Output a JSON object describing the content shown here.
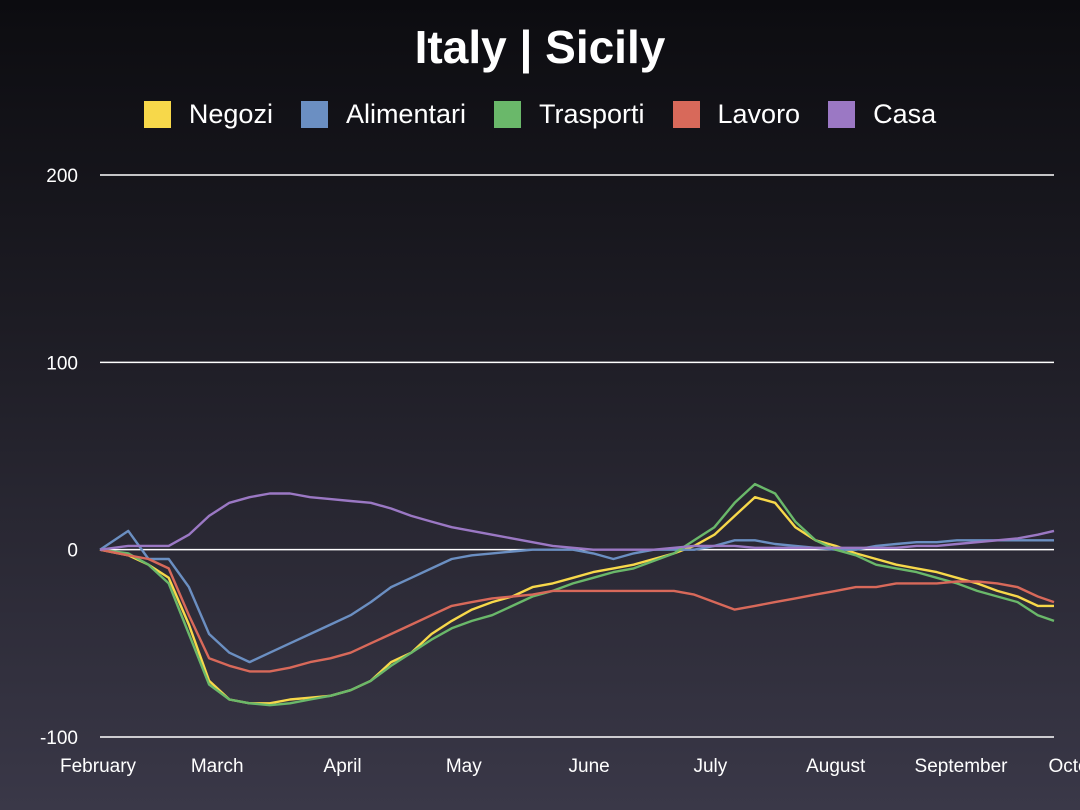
{
  "chart_data": {
    "type": "line",
    "title": "Italy | Sicily",
    "xlabel": "",
    "ylabel": "",
    "ylim": [
      -100,
      200
    ],
    "yticks": [
      -100,
      0,
      100,
      200
    ],
    "grid": "horizontal",
    "legend_position": "top-center",
    "x_tick_labels": [
      "February",
      "March",
      "April",
      "May",
      "June",
      "July",
      "August",
      "September",
      "October"
    ],
    "series": [
      {
        "name": "Negozi",
        "color": "#f7d84a",
        "points": [
          [
            0,
            0
          ],
          [
            7,
            -3
          ],
          [
            12,
            -8
          ],
          [
            17,
            -15
          ],
          [
            22,
            -40
          ],
          [
            27,
            -70
          ],
          [
            32,
            -80
          ],
          [
            37,
            -82
          ],
          [
            42,
            -82
          ],
          [
            47,
            -80
          ],
          [
            52,
            -79
          ],
          [
            57,
            -78
          ],
          [
            62,
            -75
          ],
          [
            67,
            -70
          ],
          [
            72,
            -60
          ],
          [
            77,
            -55
          ],
          [
            82,
            -45
          ],
          [
            87,
            -38
          ],
          [
            92,
            -32
          ],
          [
            97,
            -28
          ],
          [
            102,
            -25
          ],
          [
            107,
            -20
          ],
          [
            112,
            -18
          ],
          [
            117,
            -15
          ],
          [
            122,
            -12
          ],
          [
            127,
            -10
          ],
          [
            132,
            -8
          ],
          [
            137,
            -5
          ],
          [
            142,
            -2
          ],
          [
            147,
            2
          ],
          [
            152,
            8
          ],
          [
            157,
            18
          ],
          [
            162,
            28
          ],
          [
            167,
            25
          ],
          [
            172,
            12
          ],
          [
            177,
            5
          ],
          [
            182,
            2
          ],
          [
            187,
            -2
          ],
          [
            192,
            -5
          ],
          [
            197,
            -8
          ],
          [
            202,
            -10
          ],
          [
            207,
            -12
          ],
          [
            212,
            -15
          ],
          [
            217,
            -18
          ],
          [
            222,
            -22
          ],
          [
            227,
            -25
          ],
          [
            232,
            -30
          ],
          [
            236,
            -30
          ]
        ]
      },
      {
        "name": "Alimentari",
        "color": "#6b8fc2",
        "points": [
          [
            0,
            0
          ],
          [
            7,
            10
          ],
          [
            12,
            -5
          ],
          [
            17,
            -5
          ],
          [
            22,
            -20
          ],
          [
            27,
            -45
          ],
          [
            32,
            -55
          ],
          [
            37,
            -60
          ],
          [
            42,
            -55
          ],
          [
            47,
            -50
          ],
          [
            52,
            -45
          ],
          [
            57,
            -40
          ],
          [
            62,
            -35
          ],
          [
            67,
            -28
          ],
          [
            72,
            -20
          ],
          [
            77,
            -15
          ],
          [
            82,
            -10
          ],
          [
            87,
            -5
          ],
          [
            92,
            -3
          ],
          [
            97,
            -2
          ],
          [
            102,
            -1
          ],
          [
            107,
            0
          ],
          [
            112,
            0
          ],
          [
            117,
            0
          ],
          [
            122,
            -2
          ],
          [
            127,
            -5
          ],
          [
            132,
            -2
          ],
          [
            137,
            0
          ],
          [
            142,
            0
          ],
          [
            147,
            0
          ],
          [
            152,
            2
          ],
          [
            157,
            5
          ],
          [
            162,
            5
          ],
          [
            167,
            3
          ],
          [
            172,
            2
          ],
          [
            177,
            1
          ],
          [
            182,
            0
          ],
          [
            187,
            0
          ],
          [
            192,
            2
          ],
          [
            197,
            3
          ],
          [
            202,
            4
          ],
          [
            207,
            4
          ],
          [
            212,
            5
          ],
          [
            217,
            5
          ],
          [
            222,
            5
          ],
          [
            227,
            5
          ],
          [
            232,
            5
          ],
          [
            236,
            5
          ]
        ]
      },
      {
        "name": "Trasporti",
        "color": "#6ab86a",
        "points": [
          [
            0,
            0
          ],
          [
            7,
            -2
          ],
          [
            12,
            -8
          ],
          [
            17,
            -18
          ],
          [
            22,
            -45
          ],
          [
            27,
            -72
          ],
          [
            32,
            -80
          ],
          [
            37,
            -82
          ],
          [
            42,
            -83
          ],
          [
            47,
            -82
          ],
          [
            52,
            -80
          ],
          [
            57,
            -78
          ],
          [
            62,
            -75
          ],
          [
            67,
            -70
          ],
          [
            72,
            -62
          ],
          [
            77,
            -55
          ],
          [
            82,
            -48
          ],
          [
            87,
            -42
          ],
          [
            92,
            -38
          ],
          [
            97,
            -35
          ],
          [
            102,
            -30
          ],
          [
            107,
            -25
          ],
          [
            112,
            -22
          ],
          [
            117,
            -18
          ],
          [
            122,
            -15
          ],
          [
            127,
            -12
          ],
          [
            132,
            -10
          ],
          [
            137,
            -6
          ],
          [
            142,
            -2
          ],
          [
            147,
            5
          ],
          [
            152,
            12
          ],
          [
            157,
            25
          ],
          [
            162,
            35
          ],
          [
            167,
            30
          ],
          [
            172,
            15
          ],
          [
            177,
            5
          ],
          [
            182,
            0
          ],
          [
            187,
            -3
          ],
          [
            192,
            -8
          ],
          [
            197,
            -10
          ],
          [
            202,
            -12
          ],
          [
            207,
            -15
          ],
          [
            212,
            -18
          ],
          [
            217,
            -22
          ],
          [
            222,
            -25
          ],
          [
            227,
            -28
          ],
          [
            232,
            -35
          ],
          [
            236,
            -38
          ]
        ]
      },
      {
        "name": "Lavoro",
        "color": "#d8695a",
        "points": [
          [
            0,
            0
          ],
          [
            7,
            -3
          ],
          [
            12,
            -5
          ],
          [
            17,
            -10
          ],
          [
            22,
            -35
          ],
          [
            27,
            -58
          ],
          [
            32,
            -62
          ],
          [
            37,
            -65
          ],
          [
            42,
            -65
          ],
          [
            47,
            -63
          ],
          [
            52,
            -60
          ],
          [
            57,
            -58
          ],
          [
            62,
            -55
          ],
          [
            67,
            -50
          ],
          [
            72,
            -45
          ],
          [
            77,
            -40
          ],
          [
            82,
            -35
          ],
          [
            87,
            -30
          ],
          [
            92,
            -28
          ],
          [
            97,
            -26
          ],
          [
            102,
            -25
          ],
          [
            107,
            -24
          ],
          [
            112,
            -22
          ],
          [
            117,
            -22
          ],
          [
            122,
            -22
          ],
          [
            127,
            -22
          ],
          [
            132,
            -22
          ],
          [
            137,
            -22
          ],
          [
            142,
            -22
          ],
          [
            147,
            -24
          ],
          [
            152,
            -28
          ],
          [
            157,
            -32
          ],
          [
            162,
            -30
          ],
          [
            167,
            -28
          ],
          [
            172,
            -26
          ],
          [
            177,
            -24
          ],
          [
            182,
            -22
          ],
          [
            187,
            -20
          ],
          [
            192,
            -20
          ],
          [
            197,
            -18
          ],
          [
            202,
            -18
          ],
          [
            207,
            -18
          ],
          [
            212,
            -17
          ],
          [
            217,
            -17
          ],
          [
            222,
            -18
          ],
          [
            227,
            -20
          ],
          [
            232,
            -25
          ],
          [
            236,
            -28
          ]
        ]
      },
      {
        "name": "Casa",
        "color": "#9b78c4",
        "points": [
          [
            0,
            0
          ],
          [
            7,
            2
          ],
          [
            12,
            2
          ],
          [
            17,
            2
          ],
          [
            22,
            8
          ],
          [
            27,
            18
          ],
          [
            32,
            25
          ],
          [
            37,
            28
          ],
          [
            42,
            30
          ],
          [
            47,
            30
          ],
          [
            52,
            28
          ],
          [
            57,
            27
          ],
          [
            62,
            26
          ],
          [
            67,
            25
          ],
          [
            72,
            22
          ],
          [
            77,
            18
          ],
          [
            82,
            15
          ],
          [
            87,
            12
          ],
          [
            92,
            10
          ],
          [
            97,
            8
          ],
          [
            102,
            6
          ],
          [
            107,
            4
          ],
          [
            112,
            2
          ],
          [
            117,
            1
          ],
          [
            122,
            0
          ],
          [
            127,
            0
          ],
          [
            132,
            0
          ],
          [
            137,
            0
          ],
          [
            142,
            1
          ],
          [
            147,
            2
          ],
          [
            152,
            2
          ],
          [
            157,
            2
          ],
          [
            162,
            1
          ],
          [
            167,
            1
          ],
          [
            172,
            1
          ],
          [
            177,
            1
          ],
          [
            182,
            1
          ],
          [
            187,
            1
          ],
          [
            192,
            1
          ],
          [
            197,
            1
          ],
          [
            202,
            2
          ],
          [
            207,
            2
          ],
          [
            212,
            3
          ],
          [
            217,
            4
          ],
          [
            222,
            5
          ],
          [
            227,
            6
          ],
          [
            232,
            8
          ],
          [
            236,
            10
          ]
        ]
      }
    ]
  }
}
